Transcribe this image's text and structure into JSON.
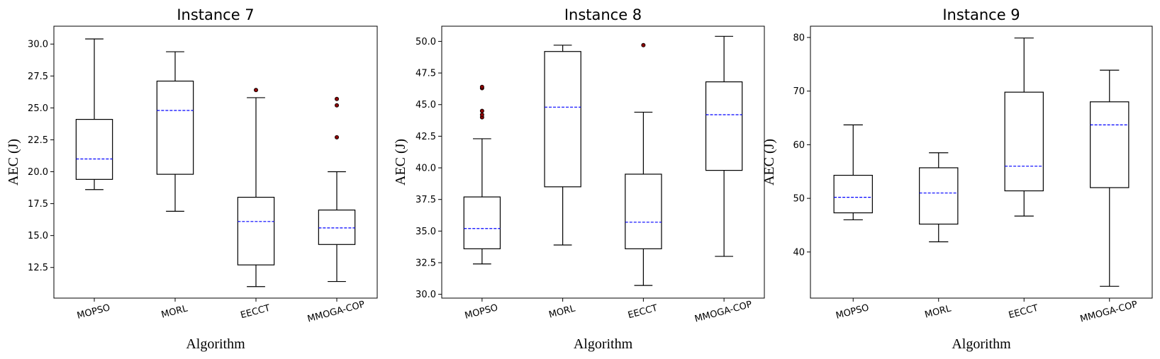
{
  "chart_data": [
    {
      "type": "box",
      "title": "Instance 7",
      "xlabel": "Algorithm",
      "ylabel": "AEC (J)",
      "categories": [
        "MOPSO",
        "MORL",
        "EECCT",
        "MMOGA-COP"
      ],
      "ylim": [
        10.1,
        31.4
      ],
      "yticks": [
        12.5,
        15.0,
        17.5,
        20.0,
        22.5,
        25.0,
        27.5,
        30.0
      ],
      "ytick_labels": [
        "12.5",
        "15.0",
        "17.5",
        "20.0",
        "22.5",
        "25.0",
        "27.5",
        "30.0"
      ],
      "boxes": [
        {
          "whisker_low": 18.6,
          "q1": 19.4,
          "median": 21.0,
          "q3": 24.1,
          "whisker_high": 30.4,
          "outliers": []
        },
        {
          "whisker_low": 16.9,
          "q1": 19.8,
          "median": 24.8,
          "q3": 27.1,
          "whisker_high": 29.4,
          "outliers": []
        },
        {
          "whisker_low": 11.0,
          "q1": 12.7,
          "median": 16.1,
          "q3": 18.0,
          "whisker_high": 25.8,
          "outliers": [
            26.4
          ]
        },
        {
          "whisker_low": 11.4,
          "q1": 14.3,
          "median": 15.6,
          "q3": 17.0,
          "whisker_high": 20.0,
          "outliers": [
            22.7,
            25.2,
            25.7
          ]
        }
      ]
    },
    {
      "type": "box",
      "title": "Instance 8",
      "xlabel": "Algorithm",
      "ylabel": "AEC (J)",
      "categories": [
        "MOPSO",
        "MORL",
        "EECCT",
        "MMOGA-COP"
      ],
      "ylim": [
        29.7,
        51.2
      ],
      "yticks": [
        30.0,
        32.5,
        35.0,
        37.5,
        40.0,
        42.5,
        45.0,
        47.5,
        50.0
      ],
      "ytick_labels": [
        "30.0",
        "32.5",
        "35.0",
        "37.5",
        "40.0",
        "42.5",
        "45.0",
        "47.5",
        "50.0"
      ],
      "boxes": [
        {
          "whisker_low": 32.4,
          "q1": 33.6,
          "median": 35.2,
          "q3": 37.7,
          "whisker_high": 42.3,
          "outliers": [
            44.0,
            44.2,
            44.5,
            46.3,
            46.4
          ]
        },
        {
          "whisker_low": 33.9,
          "q1": 38.5,
          "median": 44.8,
          "q3": 49.2,
          "whisker_high": 49.7,
          "outliers": []
        },
        {
          "whisker_low": 30.7,
          "q1": 33.6,
          "median": 35.7,
          "q3": 39.5,
          "whisker_high": 44.4,
          "outliers": [
            49.7
          ]
        },
        {
          "whisker_low": 33.0,
          "q1": 39.8,
          "median": 44.2,
          "q3": 46.8,
          "whisker_high": 50.4,
          "outliers": []
        }
      ]
    },
    {
      "type": "box",
      "title": "Instance 9",
      "xlabel": "Algorithm",
      "ylabel": "AEC (J)",
      "categories": [
        "MOPSO",
        "MORL",
        "EECCT",
        "MMOGA-COP"
      ],
      "ylim": [
        31.4,
        82.1
      ],
      "yticks": [
        40,
        50,
        60,
        70,
        80
      ],
      "ytick_labels": [
        "40",
        "50",
        "60",
        "70",
        "80"
      ],
      "boxes": [
        {
          "whisker_low": 46.0,
          "q1": 47.3,
          "median": 50.2,
          "q3": 54.3,
          "whisker_high": 63.7,
          "outliers": []
        },
        {
          "whisker_low": 41.9,
          "q1": 45.2,
          "median": 51.0,
          "q3": 55.7,
          "whisker_high": 58.5,
          "outliers": []
        },
        {
          "whisker_low": 46.7,
          "q1": 51.4,
          "median": 56.0,
          "q3": 69.8,
          "whisker_high": 79.9,
          "outliers": []
        },
        {
          "whisker_low": 33.6,
          "q1": 52.0,
          "median": 63.7,
          "q3": 68.0,
          "whisker_high": 73.9,
          "outliers": []
        }
      ]
    }
  ],
  "colors": {
    "box": "#000000",
    "median": "#0000ff",
    "outlier_fill": "#8b0000",
    "axes": "#000000"
  }
}
